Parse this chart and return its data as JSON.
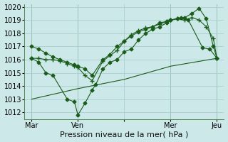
{
  "xlabel": "Pression niveau de la mer( hPa )",
  "background_color": "#cce8e8",
  "grid_color": "#aacfcf",
  "line_color": "#1a5c1a",
  "vline_color": "#4a8a4a",
  "ylim": [
    1011.5,
    1020.2
  ],
  "xlim": [
    -0.5,
    13.5
  ],
  "yticks": [
    1012,
    1013,
    1014,
    1015,
    1016,
    1017,
    1018,
    1019,
    1020
  ],
  "xtick_positions": [
    0,
    3.25,
    6.5,
    9.75,
    13
  ],
  "xtick_labels": [
    "Mar",
    "Ven",
    "",
    "Mer",
    "Jeu"
  ],
  "vline_positions": [
    0,
    3.25,
    9.75,
    13
  ],
  "series1_x": [
    0,
    0.5,
    1,
    1.5,
    2,
    2.5,
    3,
    3.25,
    3.75,
    4.25,
    5,
    5.5,
    6,
    6.5,
    7,
    7.5,
    8,
    8.5,
    9,
    9.5,
    9.75,
    10.25,
    10.75,
    11.25,
    11.75,
    12.25,
    12.75,
    13
  ],
  "series1_y": [
    1017.0,
    1016.8,
    1016.5,
    1016.2,
    1016.0,
    1015.8,
    1015.6,
    1015.5,
    1015.3,
    1014.8,
    1016.0,
    1016.4,
    1017.0,
    1017.4,
    1017.8,
    1018.1,
    1018.3,
    1018.5,
    1018.8,
    1018.9,
    1019.0,
    1019.1,
    1019.2,
    1019.5,
    1019.9,
    1019.1,
    1017.0,
    1016.1
  ],
  "series2_x": [
    0,
    0.5,
    1,
    1.5,
    2,
    2.5,
    3,
    3.25,
    3.75,
    4.25,
    5,
    5.5,
    6,
    6.5,
    7,
    7.5,
    8,
    8.5,
    9,
    9.5,
    9.75,
    10.25,
    10.75,
    11.25,
    11.75,
    12.25,
    12.75,
    13
  ],
  "series2_y": [
    1016.1,
    1016.1,
    1016.0,
    1016.0,
    1015.9,
    1015.7,
    1015.5,
    1015.4,
    1014.8,
    1014.4,
    1015.9,
    1016.3,
    1016.7,
    1017.4,
    1017.9,
    1018.2,
    1018.4,
    1018.5,
    1018.7,
    1018.9,
    1019.0,
    1019.1,
    1019.0,
    1019.2,
    1019.0,
    1018.5,
    1017.6,
    1016.1
  ],
  "series3_x": [
    0,
    0.5,
    1,
    1.5,
    2.5,
    3,
    3.25,
    3.75,
    4.25,
    4.5,
    5,
    5.5,
    6,
    6.5,
    7,
    7.5,
    8,
    8.5,
    9,
    9.5,
    9.75,
    10.5,
    11,
    12,
    12.5,
    13
  ],
  "series3_y": [
    1016.1,
    1015.8,
    1015.0,
    1014.8,
    1013.0,
    1012.8,
    1011.8,
    1012.7,
    1013.7,
    1014.1,
    1015.3,
    1015.8,
    1016.0,
    1016.6,
    1016.8,
    1017.5,
    1018.0,
    1018.3,
    1018.5,
    1018.8,
    1019.0,
    1019.2,
    1019.0,
    1016.9,
    1016.8,
    1016.1
  ],
  "series4_x": [
    0,
    3.25,
    6.5,
    9.75,
    13
  ],
  "series4_y": [
    1013.0,
    1013.8,
    1014.5,
    1015.5,
    1016.1
  ],
  "ylabel_fontsize": 7,
  "xlabel_fontsize": 8,
  "tick_fontsize": 7
}
